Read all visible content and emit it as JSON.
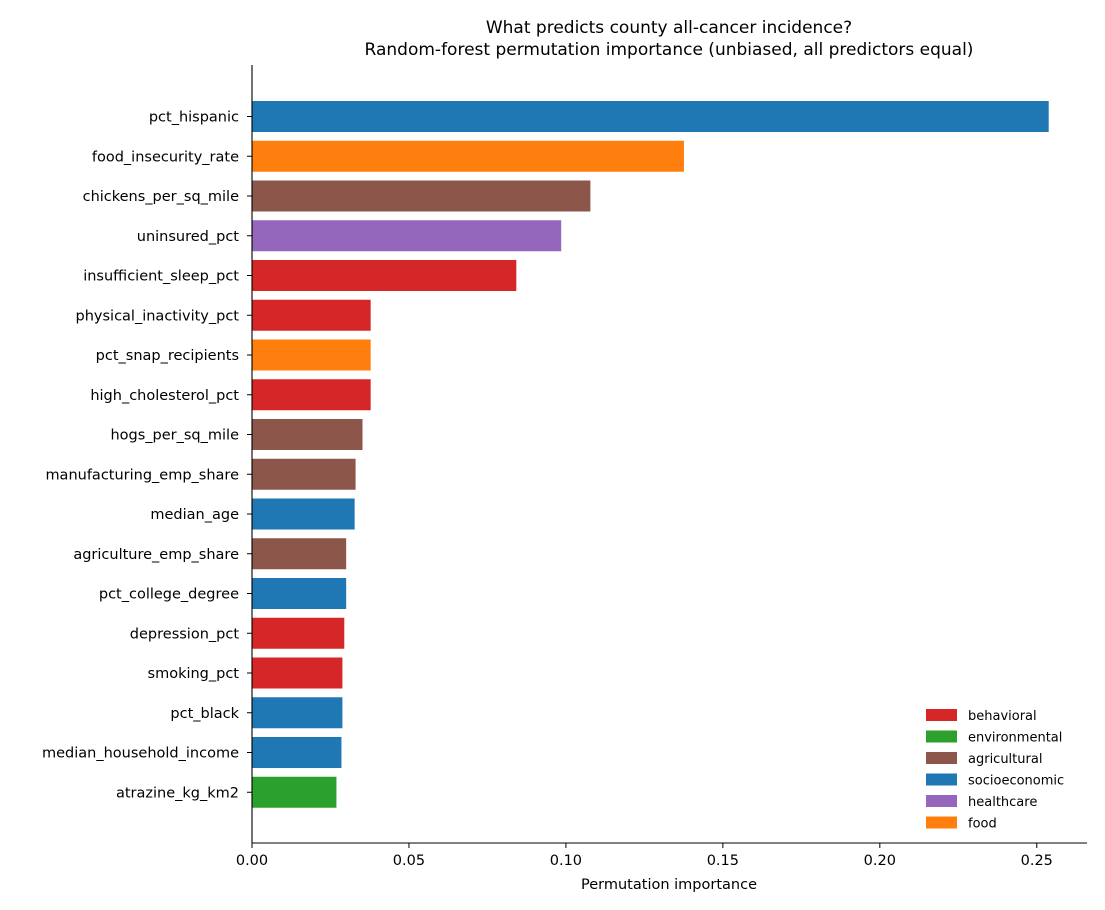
{
  "chart_data": {
    "type": "bar",
    "orientation": "horizontal",
    "title": "What predicts county all-cancer incidence?",
    "subtitle": "Random-forest permutation importance (unbiased, all predictors equal)",
    "xlabel": "Permutation importance",
    "ylabel": "",
    "xlim": [
      0,
      0.266
    ],
    "xticks": [
      0,
      0.05,
      0.1,
      0.15,
      0.2,
      0.25
    ],
    "xtick_labels": [
      "0.00",
      "0.05",
      "0.10",
      "0.15",
      "0.20",
      "0.25"
    ],
    "grid": false,
    "legend_position": "bottom-right",
    "categories": [
      "pct_hispanic",
      "food_insecurity_rate",
      "chickens_per_sq_mile",
      "uninsured_pct",
      "insufficient_sleep_pct",
      "physical_inactivity_pct",
      "pct_snap_recipients",
      "high_cholesterol_pct",
      "hogs_per_sq_mile",
      "manufacturing_emp_share",
      "median_age",
      "agriculture_emp_share",
      "pct_college_degree",
      "depression_pct",
      "smoking_pct",
      "pct_black",
      "median_household_income",
      "atrazine_kg_km2"
    ],
    "values": [
      0.2538,
      0.1376,
      0.1078,
      0.0985,
      0.0842,
      0.0378,
      0.0378,
      0.0378,
      0.0352,
      0.033,
      0.0327,
      0.03,
      0.03,
      0.0294,
      0.0288,
      0.0288,
      0.0285,
      0.0269
    ],
    "groups": [
      "socioeconomic",
      "food",
      "agricultural",
      "healthcare",
      "behavioral",
      "behavioral",
      "food",
      "behavioral",
      "agricultural",
      "agricultural",
      "socioeconomic",
      "agricultural",
      "socioeconomic",
      "behavioral",
      "behavioral",
      "socioeconomic",
      "socioeconomic",
      "environmental"
    ],
    "legend": [
      {
        "name": "behavioral",
        "color": "#d62728"
      },
      {
        "name": "environmental",
        "color": "#2ca02c"
      },
      {
        "name": "agricultural",
        "color": "#8c564b"
      },
      {
        "name": "socioeconomic",
        "color": "#1f77b4"
      },
      {
        "name": "healthcare",
        "color": "#9467bd"
      },
      {
        "name": "food",
        "color": "#ff7f0e"
      }
    ]
  }
}
